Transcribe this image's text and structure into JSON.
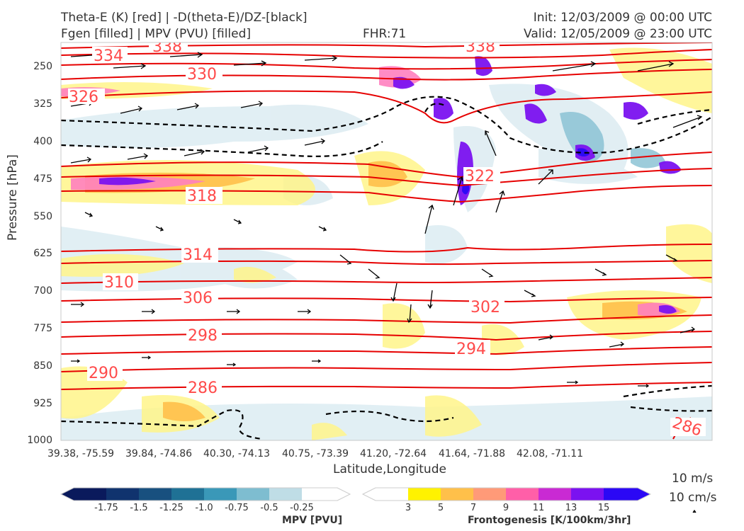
{
  "header": {
    "title_left_1": "Theta-E (K) [red] | -D(theta-E)/DZ-[black]",
    "title_left_2": "Fgen [filled] | MPV (PVU) [filled]",
    "fhr": "FHR:71",
    "init": "Init: 12/03/2009 @ 00:00 UTC",
    "valid": "Valid: 12/05/2009 @ 23:00 UTC"
  },
  "chart_data": {
    "type": "cross-section",
    "xlabel": "Latitude,Longitude",
    "ylabel": "Pressure [hPa]",
    "x_tick_labels": [
      "39.38, -75.59",
      "39.84, -74.86",
      "40.30, -74.13",
      "40.75, -73.39",
      "41.20, -72.64",
      "41.64, -71.88",
      "42.08, -71.11"
    ],
    "y_ticks": [
      250,
      325,
      400,
      475,
      550,
      625,
      700,
      775,
      850,
      925,
      1000
    ],
    "ylim": [
      1000,
      190
    ],
    "y_inverted": true,
    "theta_e_contour_labels": [
      "338",
      "334",
      "330",
      "326",
      "322",
      "318",
      "314",
      "310",
      "306",
      "302",
      "298",
      "294",
      "290",
      "286",
      "338",
      "286"
    ],
    "theta_e_color": "#e60000",
    "mpv_colorbar": {
      "title": "MPV [PVU]",
      "labels": [
        "-1.75",
        "-1.5",
        "-1.25",
        "-1.0",
        "-0.75",
        "-0.5",
        "-0.25"
      ],
      "colors": [
        "#0a1a5c",
        "#10336e",
        "#18507f",
        "#1f7195",
        "#3a98b8",
        "#7ebdd0",
        "#bfdde6",
        "#ffffff"
      ]
    },
    "fgen_colorbar": {
      "title": "Frontogenesis [K/100km/3hr]",
      "labels": [
        "3",
        "5",
        "7",
        "9",
        "11",
        "13",
        "15"
      ],
      "colors": [
        "#ffffff",
        "#fff200",
        "#ffc04a",
        "#ff9a78",
        "#ff5fa8",
        "#c92ad3",
        "#7b12f0",
        "#2b08f5"
      ]
    },
    "vector_key": {
      "horizontal": "10 m/s",
      "vertical": "10 cm/s"
    }
  }
}
